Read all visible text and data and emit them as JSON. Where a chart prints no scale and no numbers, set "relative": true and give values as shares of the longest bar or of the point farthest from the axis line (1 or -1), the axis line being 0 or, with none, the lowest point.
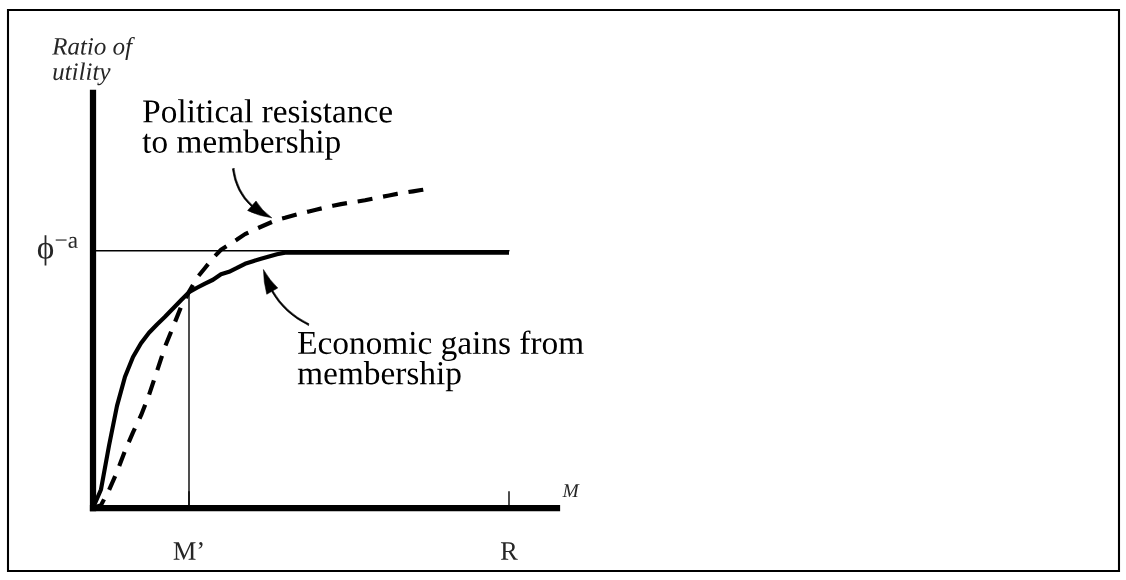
{
  "chart_data": {
    "type": "line",
    "relative": true,
    "ylabel": "Ratio of\nutility",
    "xlabel": "M",
    "categories": [
      null,
      null,
      null,
      null,
      null,
      null,
      null,
      null,
      null,
      null,
      null,
      null,
      "M’",
      null,
      null,
      null,
      null,
      null,
      null,
      null,
      null,
      null,
      null,
      null,
      null,
      null,
      null,
      null,
      null,
      null,
      null,
      null,
      null,
      null,
      null,
      null,
      null,
      null,
      null,
      null,
      null,
      null,
      null,
      null,
      null,
      null,
      null,
      null,
      null,
      null,
      null,
      null,
      "R",
      null,
      null,
      null,
      null,
      null,
      null
    ],
    "series": [
      {
        "name": "Political resistance\nto membership",
        "color": "#000000",
        "line_style": "dashed",
        "values": [
          0,
          0.009,
          0.056,
          0.113,
          0.179,
          0.237,
          0.29,
          0.354,
          0.429,
          0.505,
          0.567,
          0.63,
          0.677,
          0.721,
          0.752,
          0.783,
          0.809,
          0.825,
          0.841,
          0.858,
          0.87,
          0.881,
          0.892,
          0.903,
          0.909,
          0.916,
          0.923,
          0.929,
          0.935,
          0.941,
          0.947,
          0.952,
          0.956,
          0.96,
          0.964,
          0.969,
          0.974,
          0.979,
          0.984,
          0.988,
          0.992,
          0.996,
          1.0,
          null,
          null,
          null,
          null,
          null,
          null,
          null,
          null,
          null,
          null,
          null,
          null,
          null,
          null,
          null,
          null
        ]
      },
      {
        "name": "Economic gains from\nmembership",
        "color": "#000000",
        "line_style": "solid",
        "values": [
          0,
          0.058,
          0.195,
          0.32,
          0.411,
          0.473,
          0.516,
          0.549,
          0.575,
          0.599,
          0.625,
          0.651,
          0.676,
          0.69,
          0.703,
          0.715,
          0.732,
          0.74,
          0.752,
          0.765,
          0.773,
          0.781,
          0.788,
          0.795,
          0.8,
          0.8,
          0.8,
          0.8,
          0.8,
          0.8,
          0.8,
          0.8,
          0.8,
          0.8,
          0.8,
          0.8,
          0.8,
          0.8,
          0.8,
          0.8,
          0.8,
          0.8,
          0.8,
          0.8,
          0.8,
          0.8,
          0.8,
          0.8,
          0.8,
          0.8,
          0.8,
          0.8,
          0.8,
          null,
          null,
          null,
          null,
          null,
          null
        ]
      }
    ],
    "ref_lines": [
      {
        "axis": "y",
        "value": 0.806,
        "label": "ϕ$^{−a}$"
      },
      {
        "axis": "x",
        "value": "M’"
      }
    ]
  }
}
